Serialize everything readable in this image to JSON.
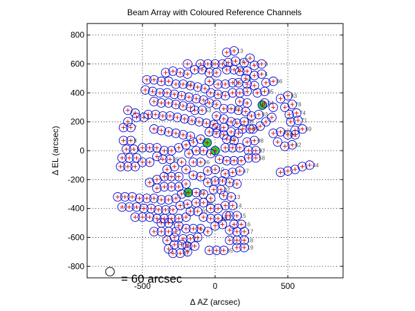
{
  "chart_data": {
    "type": "scatter",
    "title": "Beam Array with Coloured Reference Channels",
    "xlabel": "Δ AZ (arcsec)",
    "ylabel": "Δ EL (arcsec)",
    "xlim": [
      -880,
      880
    ],
    "ylim": [
      -880,
      880
    ],
    "x_ticks": [
      -500,
      0,
      500
    ],
    "y_ticks": [
      -800,
      -600,
      -400,
      -200,
      0,
      200,
      400,
      600,
      800
    ],
    "grid": true,
    "beam_radius_arcsec": 30,
    "scale_label": "= 60 arcsec",
    "colors": {
      "beam_outline": "#0000cc",
      "beam_center_marker": "#dd0000",
      "reference_fill": "#33cc33",
      "label": "#555555",
      "grid": "#000000"
    },
    "reference_beams": [
      {
        "x": 325,
        "y": 315
      },
      {
        "x": -55,
        "y": 55
      },
      {
        "x": 0,
        "y": 0
      },
      {
        "x": -185,
        "y": -290
      }
    ],
    "beams": [
      {
        "x": 130,
        "y": 690,
        "label": "13"
      },
      {
        "x": 80,
        "y": 680
      },
      {
        "x": 140,
        "y": 620,
        "label": "14"
      },
      {
        "x": 90,
        "y": 610
      },
      {
        "x": 320,
        "y": 600,
        "label": "3"
      },
      {
        "x": 270,
        "y": 590
      },
      {
        "x": 130,
        "y": 560,
        "label": "20"
      },
      {
        "x": 80,
        "y": 560
      },
      {
        "x": 320,
        "y": 530,
        "label": "4"
      },
      {
        "x": 270,
        "y": 520
      },
      {
        "x": 400,
        "y": 480,
        "label": "06"
      },
      {
        "x": 350,
        "y": 470
      },
      {
        "x": 120,
        "y": 470,
        "label": "15"
      },
      {
        "x": 70,
        "y": 460
      },
      {
        "x": 340,
        "y": 410,
        "label": "95"
      },
      {
        "x": 290,
        "y": 400
      },
      {
        "x": 500,
        "y": 380,
        "label": "83"
      },
      {
        "x": 450,
        "y": 360
      },
      {
        "x": 340,
        "y": 330,
        "label": "04"
      },
      {
        "x": 530,
        "y": 320,
        "label": "78"
      },
      {
        "x": 480,
        "y": 300
      },
      {
        "x": 560,
        "y": 260,
        "label": "74"
      },
      {
        "x": 510,
        "y": 250
      },
      {
        "x": 300,
        "y": 250,
        "label": "93"
      },
      {
        "x": 250,
        "y": 240
      },
      {
        "x": 570,
        "y": 210,
        "label": "71"
      },
      {
        "x": 520,
        "y": 200
      },
      {
        "x": 200,
        "y": 200,
        "label": "08"
      },
      {
        "x": 150,
        "y": 190
      },
      {
        "x": 600,
        "y": 150,
        "label": "69"
      },
      {
        "x": 550,
        "y": 140
      },
      {
        "x": 240,
        "y": 150,
        "label": "99"
      },
      {
        "x": 190,
        "y": 150
      },
      {
        "x": 450,
        "y": 130,
        "label": "80"
      },
      {
        "x": 400,
        "y": 120
      },
      {
        "x": 500,
        "y": 110,
        "label": "81"
      },
      {
        "x": 550,
        "y": 110
      },
      {
        "x": 270,
        "y": 70,
        "label": "98"
      },
      {
        "x": 220,
        "y": 60
      },
      {
        "x": 530,
        "y": 40,
        "label": "62"
      },
      {
        "x": 480,
        "y": 30
      },
      {
        "x": 430,
        "y": 60
      },
      {
        "x": 80,
        "y": 80,
        "label": "49"
      },
      {
        "x": 130,
        "y": 70
      },
      {
        "x": 280,
        "y": -50,
        "label": "58"
      },
      {
        "x": 230,
        "y": -50
      },
      {
        "x": 280,
        "y": 0,
        "label": "97"
      },
      {
        "x": 230,
        "y": 0
      },
      {
        "x": 650,
        "y": -100,
        "label": "44"
      },
      {
        "x": 600,
        "y": -110
      },
      {
        "x": 550,
        "y": -130
      },
      {
        "x": 500,
        "y": -140
      },
      {
        "x": 450,
        "y": -150
      },
      {
        "x": 170,
        "y": -140,
        "label": "47"
      },
      {
        "x": 120,
        "y": -150
      },
      {
        "x": 70,
        "y": -160
      },
      {
        "x": 0,
        "y": -130,
        "label": "10"
      },
      {
        "x": -50,
        "y": -140
      },
      {
        "x": -310,
        "y": -60,
        "label": "05"
      },
      {
        "x": -360,
        "y": -60
      },
      {
        "x": -100,
        "y": -80,
        "label": "36"
      },
      {
        "x": -150,
        "y": -80
      },
      {
        "x": 40,
        "y": -270,
        "label": "02"
      },
      {
        "x": -10,
        "y": -270
      },
      {
        "x": -130,
        "y": -290,
        "label": "33"
      },
      {
        "x": 110,
        "y": -320,
        "label": "13"
      },
      {
        "x": 60,
        "y": -310
      },
      {
        "x": 120,
        "y": -380,
        "label": "14"
      },
      {
        "x": 70,
        "y": -380
      },
      {
        "x": -80,
        "y": -360,
        "label": "06"
      },
      {
        "x": -130,
        "y": -360
      },
      {
        "x": 150,
        "y": -450,
        "label": "15"
      },
      {
        "x": 100,
        "y": -450
      },
      {
        "x": -120,
        "y": -420,
        "label": "20"
      },
      {
        "x": -170,
        "y": -420
      },
      {
        "x": 20,
        "y": -470,
        "label": "88"
      },
      {
        "x": -30,
        "y": -470
      },
      {
        "x": 180,
        "y": -510,
        "label": "16"
      },
      {
        "x": 130,
        "y": -510
      },
      {
        "x": -320,
        "y": -500,
        "label": "8"
      },
      {
        "x": -370,
        "y": -500
      },
      {
        "x": -150,
        "y": -540,
        "label": "76"
      },
      {
        "x": -200,
        "y": -540
      },
      {
        "x": 200,
        "y": -560,
        "label": "17"
      },
      {
        "x": 150,
        "y": -560
      },
      {
        "x": 100,
        "y": -550
      },
      {
        "x": -170,
        "y": -610,
        "label": "72"
      },
      {
        "x": -220,
        "y": -610
      },
      {
        "x": 200,
        "y": -620,
        "label": "18"
      },
      {
        "x": 150,
        "y": -620
      },
      {
        "x": 100,
        "y": -620
      },
      {
        "x": -230,
        "y": -650,
        "label": "69"
      },
      {
        "x": -280,
        "y": -650
      },
      {
        "x": 200,
        "y": -670,
        "label": "19"
      },
      {
        "x": 150,
        "y": -670
      },
      {
        "x": 60,
        "y": -690,
        "label": "85"
      },
      {
        "x": 10,
        "y": -690
      },
      {
        "x": -40,
        "y": -690
      },
      {
        "x": -240,
        "y": -710,
        "label": "67"
      },
      {
        "x": -290,
        "y": -710
      },
      {
        "x": 110,
        "y": 290,
        "label": "93"
      },
      {
        "x": 60,
        "y": 290
      },
      {
        "x": -90,
        "y": 280,
        "label": "53"
      },
      {
        "x": -140,
        "y": 280
      },
      {
        "x": -220,
        "y": 460,
        "label": "64"
      },
      {
        "x": -270,
        "y": 460
      },
      {
        "x": -90,
        "y": 560,
        "label": "2"
      },
      {
        "x": -140,
        "y": 560
      },
      {
        "x": -50,
        "y": 600,
        "label": "0"
      },
      {
        "x": -100,
        "y": 600
      },
      {
        "x": -580,
        "y": 160,
        "label": "7"
      },
      {
        "x": -630,
        "y": 160
      },
      {
        "x": -580,
        "y": 70,
        "label": "8"
      },
      {
        "x": -630,
        "y": 70
      },
      {
        "x": -560,
        "y": 10,
        "label": "9"
      },
      {
        "x": -610,
        "y": 10
      },
      {
        "x": -490,
        "y": 230,
        "label": "5"
      },
      {
        "x": -540,
        "y": 230
      },
      {
        "x": 60,
        "y": 160,
        "label": "7"
      },
      {
        "x": 10,
        "y": 160
      },
      {
        "x": 210,
        "y": 500,
        "label": "0"
      },
      {
        "x": -40,
        "y": 480,
        "label": "7"
      },
      {
        "x": -600,
        "y": 280
      },
      {
        "x": -550,
        "y": 260
      },
      {
        "x": -600,
        "y": 200
      },
      {
        "x": -650,
        "y": -110
      },
      {
        "x": -600,
        "y": -110
      },
      {
        "x": -550,
        "y": -110
      },
      {
        "x": -640,
        "y": -50
      },
      {
        "x": -590,
        "y": -50
      },
      {
        "x": -540,
        "y": -50
      },
      {
        "x": -500,
        "y": -80
      },
      {
        "x": -450,
        "y": -80
      },
      {
        "x": -400,
        "y": -40
      },
      {
        "x": -450,
        "y": 20
      },
      {
        "x": -400,
        "y": 20
      },
      {
        "x": -500,
        "y": 20
      },
      {
        "x": -350,
        "y": 0
      },
      {
        "x": -300,
        "y": 0
      },
      {
        "x": -250,
        "y": 20
      },
      {
        "x": -200,
        "y": 40
      },
      {
        "x": -150,
        "y": 60
      },
      {
        "x": -100,
        "y": 80
      },
      {
        "x": -420,
        "y": 150
      },
      {
        "x": -370,
        "y": 140
      },
      {
        "x": -320,
        "y": 130
      },
      {
        "x": -270,
        "y": 120
      },
      {
        "x": -220,
        "y": 110
      },
      {
        "x": -170,
        "y": 100
      },
      {
        "x": -460,
        "y": 250
      },
      {
        "x": -410,
        "y": 250
      },
      {
        "x": -360,
        "y": 240
      },
      {
        "x": -310,
        "y": 240
      },
      {
        "x": -260,
        "y": 230
      },
      {
        "x": -210,
        "y": 220
      },
      {
        "x": -160,
        "y": 210
      },
      {
        "x": -110,
        "y": 200
      },
      {
        "x": -60,
        "y": 190
      },
      {
        "x": -10,
        "y": 180
      },
      {
        "x": -40,
        "y": 130
      },
      {
        "x": 10,
        "y": 120
      },
      {
        "x": 60,
        "y": 110
      },
      {
        "x": 110,
        "y": 130
      },
      {
        "x": 160,
        "y": 120
      },
      {
        "x": -420,
        "y": 340
      },
      {
        "x": -370,
        "y": 330
      },
      {
        "x": -320,
        "y": 330
      },
      {
        "x": -270,
        "y": 320
      },
      {
        "x": -220,
        "y": 310
      },
      {
        "x": -170,
        "y": 300
      },
      {
        "x": -40,
        "y": 330
      },
      {
        "x": 10,
        "y": 320
      },
      {
        "x": 160,
        "y": 280
      },
      {
        "x": 210,
        "y": 270
      },
      {
        "x": 170,
        "y": 340
      },
      {
        "x": 220,
        "y": 330
      },
      {
        "x": -480,
        "y": 420
      },
      {
        "x": -430,
        "y": 410
      },
      {
        "x": -380,
        "y": 400
      },
      {
        "x": -330,
        "y": 400
      },
      {
        "x": -280,
        "y": 390
      },
      {
        "x": -230,
        "y": 380
      },
      {
        "x": -180,
        "y": 370
      },
      {
        "x": -130,
        "y": 360
      },
      {
        "x": -80,
        "y": 350
      },
      {
        "x": -30,
        "y": 400
      },
      {
        "x": 20,
        "y": 390
      },
      {
        "x": 70,
        "y": 380
      },
      {
        "x": 120,
        "y": 400
      },
      {
        "x": 170,
        "y": 400
      },
      {
        "x": 220,
        "y": 410
      },
      {
        "x": -470,
        "y": 490
      },
      {
        "x": -420,
        "y": 490
      },
      {
        "x": -370,
        "y": 480
      },
      {
        "x": -320,
        "y": 480
      },
      {
        "x": -170,
        "y": 450
      },
      {
        "x": -120,
        "y": 440
      },
      {
        "x": -70,
        "y": 430
      },
      {
        "x": 20,
        "y": 460
      },
      {
        "x": 160,
        "y": 470
      },
      {
        "x": 220,
        "y": 460
      },
      {
        "x": 270,
        "y": 450
      },
      {
        "x": -340,
        "y": 540
      },
      {
        "x": -290,
        "y": 550
      },
      {
        "x": -240,
        "y": 540
      },
      {
        "x": -190,
        "y": 530
      },
      {
        "x": -40,
        "y": 540
      },
      {
        "x": 10,
        "y": 540
      },
      {
        "x": 170,
        "y": 550
      },
      {
        "x": 220,
        "y": 550
      },
      {
        "x": -190,
        "y": 600
      },
      {
        "x": 0,
        "y": 600
      },
      {
        "x": 50,
        "y": 600
      },
      {
        "x": 200,
        "y": 610
      },
      {
        "x": 240,
        "y": 640
      },
      {
        "x": 400,
        "y": 300
      },
      {
        "x": 390,
        "y": 230
      },
      {
        "x": 350,
        "y": 200
      },
      {
        "x": 310,
        "y": 170
      },
      {
        "x": 260,
        "y": 150
      },
      {
        "x": 110,
        "y": 200
      },
      {
        "x": 60,
        "y": 220
      },
      {
        "x": 10,
        "y": 240
      },
      {
        "x": 170,
        "y": 20
      },
      {
        "x": 120,
        "y": 20
      },
      {
        "x": 70,
        "y": 20
      },
      {
        "x": 180,
        "y": -70
      },
      {
        "x": 130,
        "y": -70
      },
      {
        "x": 80,
        "y": -70
      },
      {
        "x": 30,
        "y": -60
      },
      {
        "x": -30,
        "y": -20
      },
      {
        "x": -80,
        "y": 0
      },
      {
        "x": -130,
        "y": 0
      },
      {
        "x": -180,
        "y": -20
      },
      {
        "x": -230,
        "y": -80
      },
      {
        "x": -280,
        "y": -110
      },
      {
        "x": -330,
        "y": -130
      },
      {
        "x": -200,
        "y": -130
      },
      {
        "x": -150,
        "y": -170
      },
      {
        "x": -100,
        "y": -180
      },
      {
        "x": -250,
        "y": -180
      },
      {
        "x": -300,
        "y": -180
      },
      {
        "x": -350,
        "y": -180
      },
      {
        "x": -400,
        "y": -200
      },
      {
        "x": -450,
        "y": -220
      },
      {
        "x": -400,
        "y": -260
      },
      {
        "x": -350,
        "y": -250
      },
      {
        "x": -300,
        "y": -250
      },
      {
        "x": -250,
        "y": -250
      },
      {
        "x": -200,
        "y": -230
      },
      {
        "x": -50,
        "y": -220
      },
      {
        "x": 0,
        "y": -210
      },
      {
        "x": 50,
        "y": -210
      },
      {
        "x": 100,
        "y": -220
      },
      {
        "x": 150,
        "y": -230
      },
      {
        "x": -670,
        "y": -320
      },
      {
        "x": -620,
        "y": -320
      },
      {
        "x": -570,
        "y": -320
      },
      {
        "x": -520,
        "y": -330
      },
      {
        "x": -470,
        "y": -330
      },
      {
        "x": -420,
        "y": -330
      },
      {
        "x": -370,
        "y": -340
      },
      {
        "x": -320,
        "y": -340
      },
      {
        "x": -270,
        "y": -330
      },
      {
        "x": -230,
        "y": -300
      },
      {
        "x": -80,
        "y": -300
      },
      {
        "x": -30,
        "y": -330
      },
      {
        "x": -640,
        "y": -390
      },
      {
        "x": -590,
        "y": -390
      },
      {
        "x": -540,
        "y": -390
      },
      {
        "x": -490,
        "y": -400
      },
      {
        "x": -440,
        "y": -400
      },
      {
        "x": -390,
        "y": -410
      },
      {
        "x": -340,
        "y": -410
      },
      {
        "x": -290,
        "y": -410
      },
      {
        "x": -240,
        "y": -380
      },
      {
        "x": -190,
        "y": -370
      },
      {
        "x": -30,
        "y": -400
      },
      {
        "x": 20,
        "y": -400
      },
      {
        "x": -550,
        "y": -460
      },
      {
        "x": -500,
        "y": -460
      },
      {
        "x": -450,
        "y": -460
      },
      {
        "x": -400,
        "y": -470
      },
      {
        "x": -350,
        "y": -470
      },
      {
        "x": -300,
        "y": -470
      },
      {
        "x": -250,
        "y": -470
      },
      {
        "x": -200,
        "y": -460
      },
      {
        "x": -80,
        "y": -460
      },
      {
        "x": 80,
        "y": -450
      },
      {
        "x": 50,
        "y": -510
      },
      {
        "x": 0,
        "y": -520
      },
      {
        "x": -420,
        "y": -560
      },
      {
        "x": -370,
        "y": -560
      },
      {
        "x": -320,
        "y": -560
      },
      {
        "x": -270,
        "y": -560
      },
      {
        "x": -250,
        "y": -520
      },
      {
        "x": -100,
        "y": -540
      },
      {
        "x": -50,
        "y": -560
      },
      {
        "x": -330,
        "y": -620
      },
      {
        "x": -280,
        "y": -600
      },
      {
        "x": -120,
        "y": -600
      },
      {
        "x": -320,
        "y": -680
      },
      {
        "x": -190,
        "y": -660
      },
      {
        "x": -140,
        "y": -660
      },
      {
        "x": -190,
        "y": -700
      }
    ]
  }
}
